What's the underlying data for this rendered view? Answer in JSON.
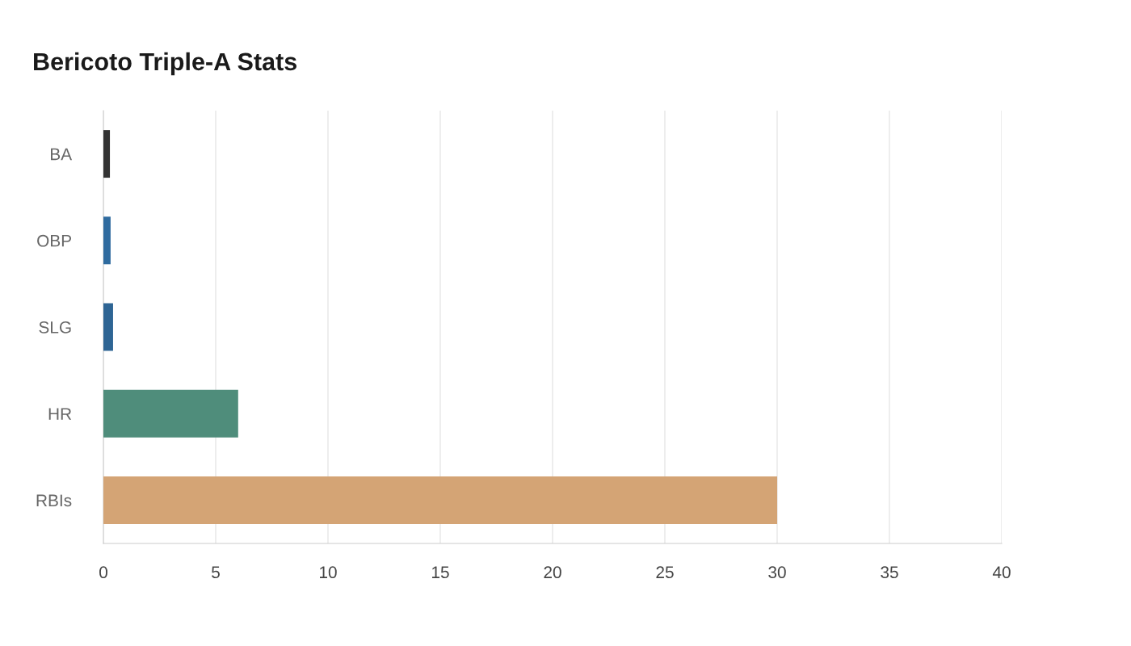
{
  "chart_data": {
    "type": "bar",
    "orientation": "horizontal",
    "title": "Bericoto Triple-A Stats",
    "categories": [
      "BA",
      "OBP",
      "SLG",
      "HR",
      "RBIs"
    ],
    "values": [
      0.29,
      0.32,
      0.43,
      6,
      30
    ],
    "colors": [
      "#333333",
      "#2f6b9f",
      "#2e6594",
      "#4f8d7b",
      "#d4a475"
    ],
    "xlim": [
      0,
      40
    ],
    "xticks": [
      0,
      5,
      10,
      15,
      20,
      25,
      30,
      35,
      40
    ],
    "grid": "x",
    "legend": false
  }
}
